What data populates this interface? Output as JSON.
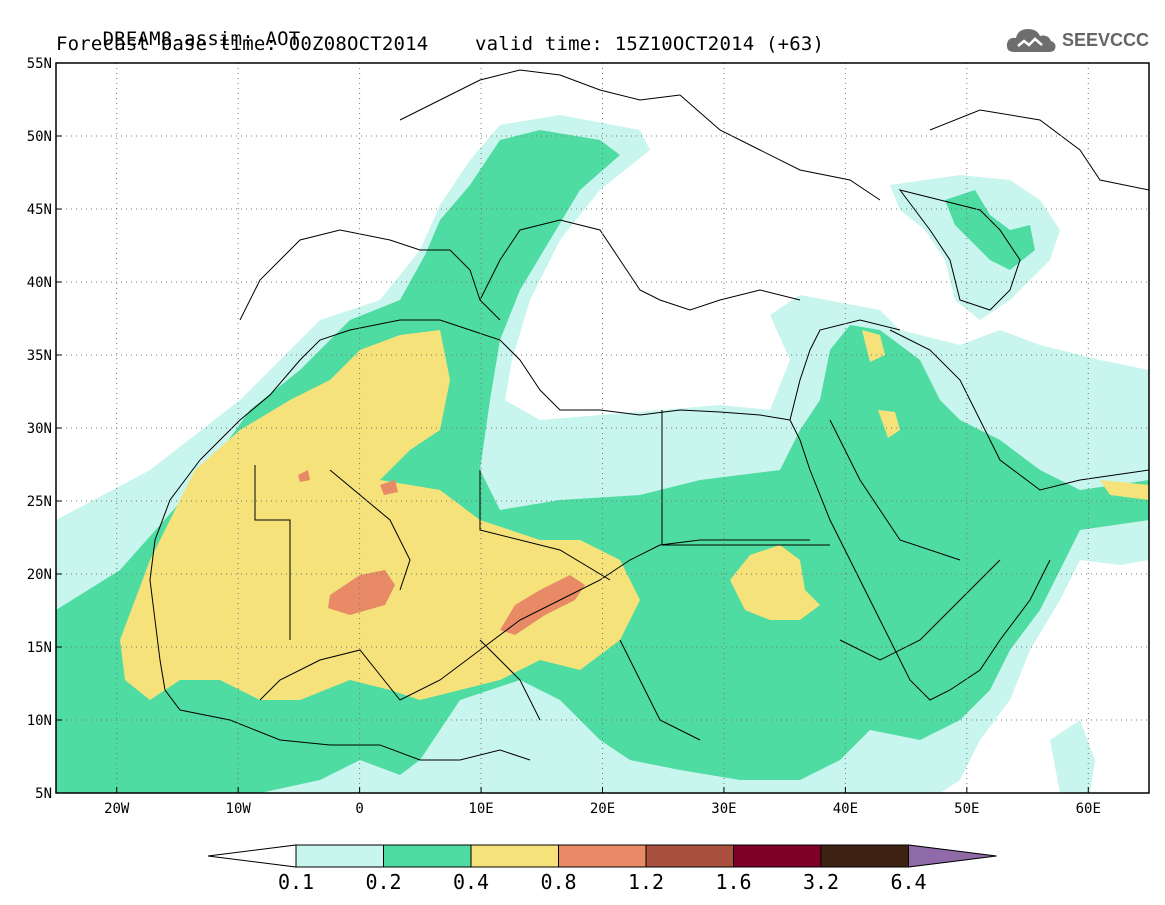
{
  "title": {
    "model": "DREAM8-assim: AOT",
    "base_time_label": "Forecast base time:",
    "base_time": "00Z08OCT2014",
    "valid_time_label": "valid time:",
    "valid_time": "15Z10OCT2014 (+63)"
  },
  "logo": {
    "text": "SEEVCCC",
    "icon": "cloud-logo-icon"
  },
  "map": {
    "lon_range": [
      -25,
      65
    ],
    "lat_range": [
      5,
      55
    ],
    "lat_labels": [
      "5N",
      "10N",
      "15N",
      "20N",
      "25N",
      "30N",
      "35N",
      "40N",
      "45N",
      "50N",
      "55N"
    ],
    "lat_values": [
      5,
      10,
      15,
      20,
      25,
      30,
      35,
      40,
      45,
      50,
      55
    ],
    "lon_labels": [
      "20W",
      "10W",
      "0",
      "10E",
      "20E",
      "30E",
      "40E",
      "50E",
      "60E"
    ],
    "lon_values": [
      -20,
      -10,
      0,
      10,
      20,
      30,
      40,
      50,
      60
    ],
    "grid": "dotted"
  },
  "colorbar": {
    "tick_labels": [
      "0.1",
      "0.2",
      "0.4",
      "0.8",
      "1.2",
      "1.6",
      "3.2",
      "6.4"
    ],
    "colors": [
      "#ffffff",
      "#c8f5ee",
      "#4fdca2",
      "#f5e27a",
      "#e88a66",
      "#a94f3e",
      "#7c0028",
      "#3e2314",
      "#8e6aa8"
    ]
  }
}
